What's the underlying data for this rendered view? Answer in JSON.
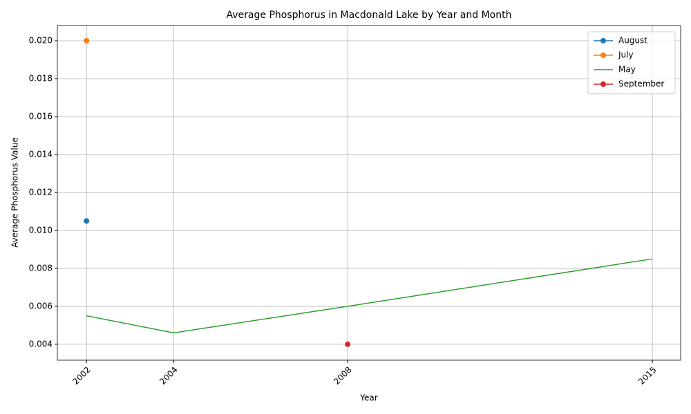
{
  "chart_data": {
    "type": "line",
    "title": "Average Phosphorus in Macdonald Lake by Year and Month",
    "x_label": "Year",
    "y_label": "Average Phosphorus Value",
    "series": [
      {
        "name": "August",
        "color": "#1f77b4",
        "markers": true,
        "x": [
          2002
        ],
        "values": [
          0.0105
        ]
      },
      {
        "name": "July",
        "color": "#ff7f0e",
        "markers": true,
        "x": [
          2002
        ],
        "values": [
          0.02
        ]
      },
      {
        "name": "May",
        "color": "#2ca02c",
        "markers": false,
        "x": [
          2002,
          2004,
          2008,
          2015
        ],
        "values": [
          0.0055,
          0.0046,
          0.006,
          0.0085
        ]
      },
      {
        "name": "September",
        "color": "#d62728",
        "markers": true,
        "x": [
          2008
        ],
        "values": [
          0.004
        ]
      }
    ],
    "xlim": [
      2001.33,
      2015.65
    ],
    "xticks": [
      2002,
      2004,
      2008,
      2015
    ],
    "ylim": [
      0.00316,
      0.0208
    ],
    "yticks": [
      0.004,
      0.006,
      0.008,
      {
        "value": 0.01,
        "label": "0.010"
      },
      0.012,
      0.014,
      0.016,
      0.018,
      {
        "value": 0.02,
        "label": "0.020"
      }
    ],
    "grid": true,
    "legend": "upper right"
  }
}
